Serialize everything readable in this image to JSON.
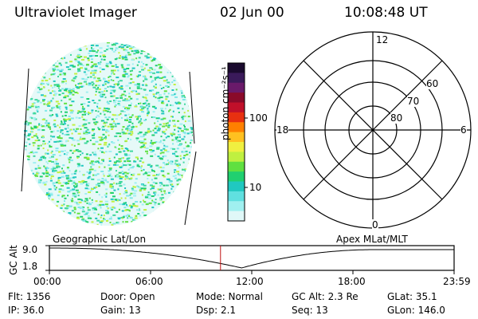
{
  "header": {
    "instrument": "Ultraviolet Imager",
    "date": "02 Jun 00",
    "time": "10:08:48 UT"
  },
  "colorbar": {
    "unit_label": "photon cm⁻²s⁻¹",
    "ticks": [
      "100",
      "10"
    ],
    "colors": [
      "#1a0a2e",
      "#3a1a5a",
      "#6a1a6a",
      "#8a0a2a",
      "#c0102a",
      "#e83010",
      "#ff8000",
      "#ffc020",
      "#f0f040",
      "#c0f040",
      "#60e040",
      "#20d070",
      "#20c8c0",
      "#60e0e0",
      "#a0f0f0",
      "#e0f8f8"
    ]
  },
  "polar_plot": {
    "mlt_labels": {
      "top": "12",
      "left": "18",
      "right": "6",
      "bottom": "0"
    },
    "lat_labels": [
      "60",
      "70",
      "80"
    ]
  },
  "timeline": {
    "left_label": "Geographic Lat/Lon",
    "right_label": "Apex MLat/MLT",
    "axis_name": "GC Alt",
    "y_ticks": [
      "9.0",
      "1.8"
    ],
    "x_ticks": [
      "00:00",
      "06:00",
      "12:00",
      "18:00",
      "23:59"
    ],
    "current_time_fraction": 0.4228
  },
  "info": {
    "flt": "Flt: 1356",
    "ip": "IP: 36.0",
    "door": "Door: Open",
    "gain": "Gain: 13",
    "mode": "Mode: Normal",
    "dsp": "Dsp:     2.1",
    "gcalt": "GC Alt: 2.3 Re",
    "seq": "Seq: 13",
    "glat": "GLat:  35.1",
    "glon": "GLon: 146.0"
  }
}
